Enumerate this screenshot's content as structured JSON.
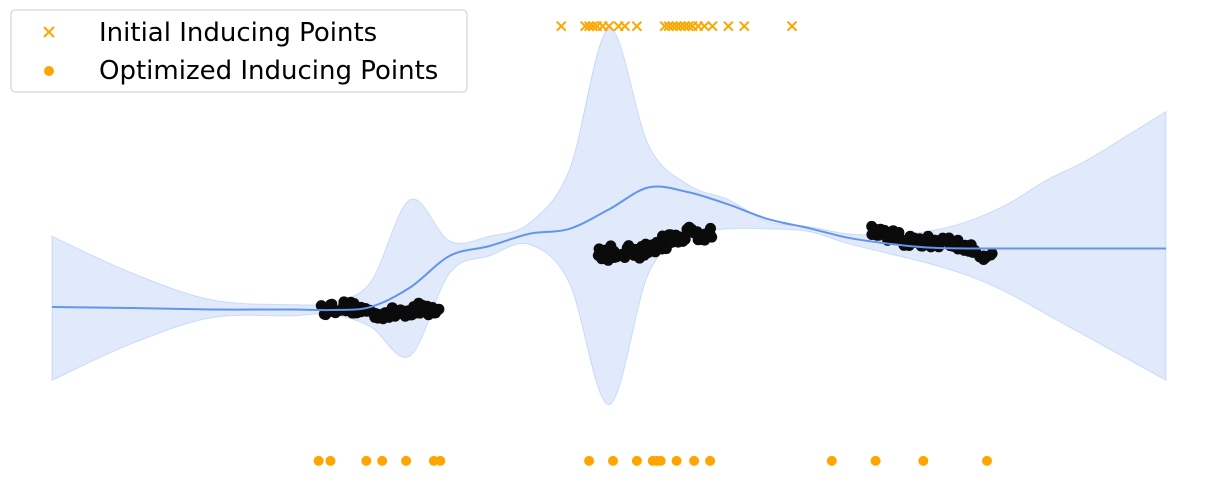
{
  "chart_data": {
    "type": "scatter",
    "title": "",
    "xlabel": "",
    "ylabel": "",
    "axes_visible": false,
    "grid": false,
    "legend_position": "top-left",
    "xlim": [
      -1.5,
      12.5
    ],
    "ylim": [
      -4.5,
      5.0
    ],
    "colors": {
      "mean": "#6495ed",
      "band": "#6495ed",
      "data": "#0b0b0b",
      "inducing": "#ffa500"
    },
    "legend": [
      {
        "label": "Initial Inducing Points",
        "marker": "x",
        "color": "#ffa500"
      },
      {
        "label": "Optimized Inducing Points",
        "marker": "o",
        "color": "#ffa500"
      }
    ],
    "mean_line": {
      "x": [
        -1.5,
        -0.5,
        0.5,
        1.5,
        2.0,
        2.5,
        3.0,
        3.5,
        4.0,
        4.5,
        5.0,
        5.5,
        6.0,
        6.5,
        7.0,
        7.5,
        8.0,
        8.5,
        9.0,
        9.5,
        10.0,
        10.5,
        11.0,
        11.5,
        12.0,
        12.5
      ],
      "y": [
        -1.0,
        -1.02,
        -1.05,
        -1.05,
        -1.06,
        -1.0,
        -0.6,
        0.05,
        0.25,
        0.5,
        0.6,
        1.0,
        1.45,
        1.35,
        1.1,
        0.8,
        0.62,
        0.42,
        0.3,
        0.22,
        0.2,
        0.2,
        0.2,
        0.2,
        0.2,
        0.2
      ]
    },
    "confidence_band": {
      "x": [
        -1.5,
        -0.5,
        0.5,
        1.5,
        2.0,
        2.5,
        3.0,
        3.5,
        4.0,
        4.5,
        5.0,
        5.5,
        6.0,
        6.5,
        7.0,
        7.5,
        8.0,
        8.5,
        9.0,
        9.5,
        10.0,
        10.5,
        11.0,
        11.5,
        12.0,
        12.5
      ],
      "upper": [
        0.45,
        -0.3,
        -0.85,
        -0.95,
        -0.9,
        -0.5,
        1.2,
        0.35,
        0.45,
        0.72,
        1.8,
        4.7,
        2.3,
        1.5,
        1.2,
        0.75,
        0.65,
        0.5,
        0.48,
        0.55,
        0.75,
        1.1,
        1.6,
        2.0,
        2.5,
        3.0
      ],
      "lower": [
        -2.5,
        -1.75,
        -1.22,
        -1.18,
        -1.15,
        -1.4,
        -2.0,
        -0.3,
        0.05,
        0.28,
        -0.5,
        -3.0,
        -0.3,
        0.45,
        0.6,
        0.6,
        0.55,
        0.3,
        0.1,
        -0.1,
        -0.35,
        -0.7,
        -1.15,
        -1.6,
        -2.05,
        -2.5
      ]
    },
    "data_clusters": [
      {
        "x_range": [
          1.9,
          3.35
        ],
        "y_start": -1.05,
        "y_end": -1.1,
        "spread": 0.12,
        "count": 70
      },
      {
        "x_range": [
          5.35,
          6.8
        ],
        "y_start": 0.0,
        "y_end": 0.55,
        "spread": 0.15,
        "count": 70
      },
      {
        "x_range": [
          8.8,
          10.3
        ],
        "y_start": 0.55,
        "y_end": 0.1,
        "spread": 0.12,
        "count": 70
      }
    ],
    "initial_inducing_points": {
      "y": 4.75,
      "x": [
        4.9,
        5.2,
        5.25,
        5.3,
        5.35,
        5.42,
        5.5,
        5.62,
        5.7,
        5.85,
        6.2,
        6.25,
        6.3,
        6.35,
        6.4,
        6.45,
        6.5,
        6.55,
        6.62,
        6.7,
        6.8,
        7.0,
        7.2,
        7.8
      ]
    },
    "optimized_inducing_points": {
      "y": -4.15,
      "x": [
        1.85,
        2.0,
        2.45,
        2.65,
        2.95,
        3.3,
        3.38,
        5.25,
        5.55,
        5.85,
        6.05,
        6.1,
        6.15,
        6.35,
        6.57,
        6.77,
        8.3,
        8.85,
        9.45,
        10.25
      ]
    }
  }
}
